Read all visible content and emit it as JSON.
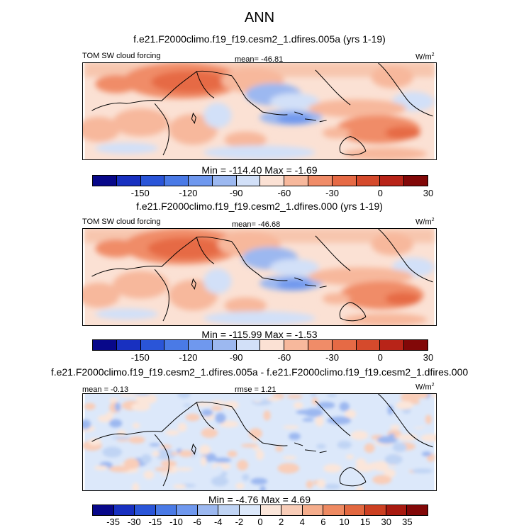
{
  "figure": {
    "title": "ANN"
  },
  "panels": [
    {
      "title": "f.e21.F2000climo.f19_f19.cesm2_1.dfires.005a (yrs 1-19)",
      "variable": "TOM SW cloud forcing",
      "stat": "mean= -46.81",
      "units": "W/m",
      "units_sup": "2",
      "minmax": "Min = -114.40 Max =  -1.69"
    },
    {
      "title": "f.e21.F2000climo.f19_f19.cesm2_1.dfires.000 (yrs 1-19)",
      "variable": "TOM SW cloud forcing",
      "stat": "mean= -46.68",
      "units": "W/m",
      "units_sup": "2",
      "minmax": "Min = -115.99 Max =  -1.53"
    },
    {
      "title": "f.e21.F2000climo.f19_f19.cesm2_1.dfires.005a - f.e21.F2000climo.f19_f19.cesm2_1.dfires.000",
      "stat_left": "mean =  -0.13",
      "stat": "rmse =  1.21",
      "units": "W/m",
      "units_sup": "2",
      "minmax": "Min =  -4.76 Max =  4.69"
    }
  ],
  "colorbars": {
    "main": {
      "colors": [
        "#08088a",
        "#1830c0",
        "#2a55d8",
        "#4a7ae6",
        "#6f98ee",
        "#9cb8f0",
        "#d2e0f8",
        "#fbe1d4",
        "#f7b89c",
        "#f08c68",
        "#e66a45",
        "#d54a2c",
        "#b82418",
        "#820808"
      ],
      "ticks": [
        "-150",
        "-120",
        "-90",
        "-60",
        "-30",
        "0",
        "30"
      ]
    },
    "diff": {
      "colors": [
        "#08088a",
        "#1830c0",
        "#2a55d8",
        "#4a7ae6",
        "#6f98ee",
        "#9cb8f0",
        "#c0d4f4",
        "#dce8fa",
        "#fbe6da",
        "#f9cdb8",
        "#f5ad8c",
        "#ee8a62",
        "#e26840",
        "#cc4022",
        "#a81a10",
        "#820808"
      ],
      "ticks": [
        "-35",
        "-30",
        "-15",
        "-10",
        "-6",
        "-4",
        "-2",
        "0",
        "2",
        "4",
        "6",
        "10",
        "15",
        "30",
        "35"
      ]
    }
  }
}
